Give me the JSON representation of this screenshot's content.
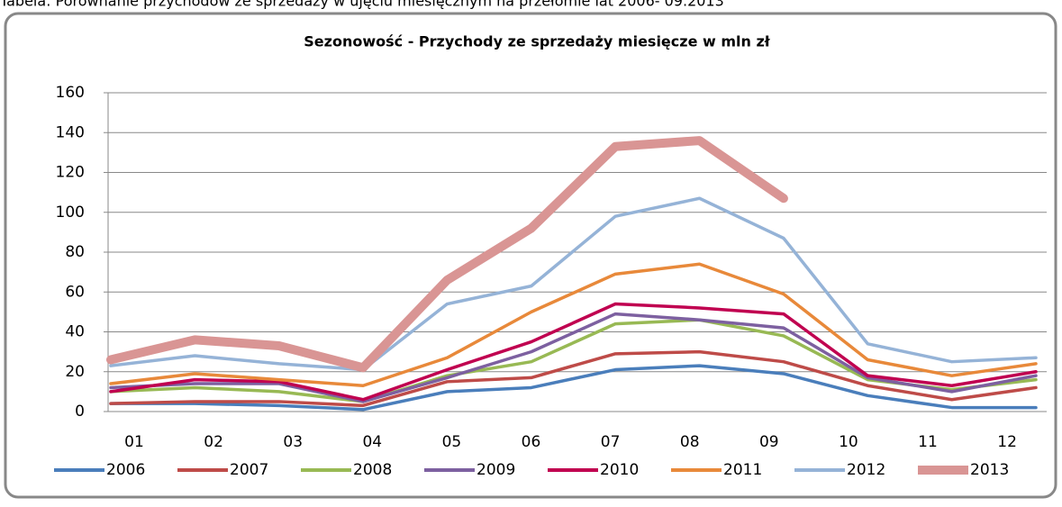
{
  "chart_data": {
    "type": "line",
    "caption": "Tabela: Porównanie przychodów ze sprzedaży w ujęciu miesięcznym na przełomie lat 2006- 09.2013",
    "title": "Sezonowość  - Przychody ze sprzedaży miesięcze w mln  zł",
    "categories": [
      "01",
      "02",
      "03",
      "04",
      "05",
      "06",
      "07",
      "08",
      "09",
      "10",
      "11",
      "12"
    ],
    "ylim": [
      0,
      160
    ],
    "yticks": [
      0,
      20,
      40,
      60,
      80,
      100,
      120,
      140,
      160
    ],
    "grid": true,
    "legend": "bottom",
    "series": [
      {
        "name": "2006",
        "color": "#4a7ebb",
        "values": [
          4,
          4,
          3,
          1,
          10,
          12,
          21,
          23,
          19,
          8,
          2,
          2
        ]
      },
      {
        "name": "2007",
        "color": "#be4b48",
        "values": [
          4,
          5,
          5,
          3,
          15,
          17,
          29,
          30,
          25,
          13,
          6,
          12
        ]
      },
      {
        "name": "2008",
        "color": "#98b954",
        "values": [
          10,
          12,
          10,
          5,
          18,
          25,
          44,
          46,
          38,
          16,
          11,
          16
        ]
      },
      {
        "name": "2009",
        "color": "#7d60a0",
        "values": [
          12,
          14,
          14,
          5,
          17,
          30,
          49,
          46,
          42,
          17,
          10,
          18
        ]
      },
      {
        "name": "2010",
        "color": "#c00050",
        "values": [
          10,
          16,
          15,
          6,
          21,
          35,
          54,
          52,
          49,
          18,
          13,
          20
        ]
      },
      {
        "name": "2011",
        "color": "#e8893a",
        "values": [
          14,
          19,
          16,
          13,
          27,
          50,
          69,
          74,
          59,
          26,
          18,
          24
        ]
      },
      {
        "name": "2012",
        "color": "#95b3d7",
        "values": [
          23,
          28,
          24,
          21,
          54,
          63,
          98,
          107,
          87,
          34,
          25,
          27
        ]
      },
      {
        "name": "2013",
        "color": "#d99594",
        "values": [
          26,
          36,
          33,
          22,
          66,
          92,
          133,
          136,
          107,
          null,
          null,
          null
        ]
      }
    ]
  }
}
